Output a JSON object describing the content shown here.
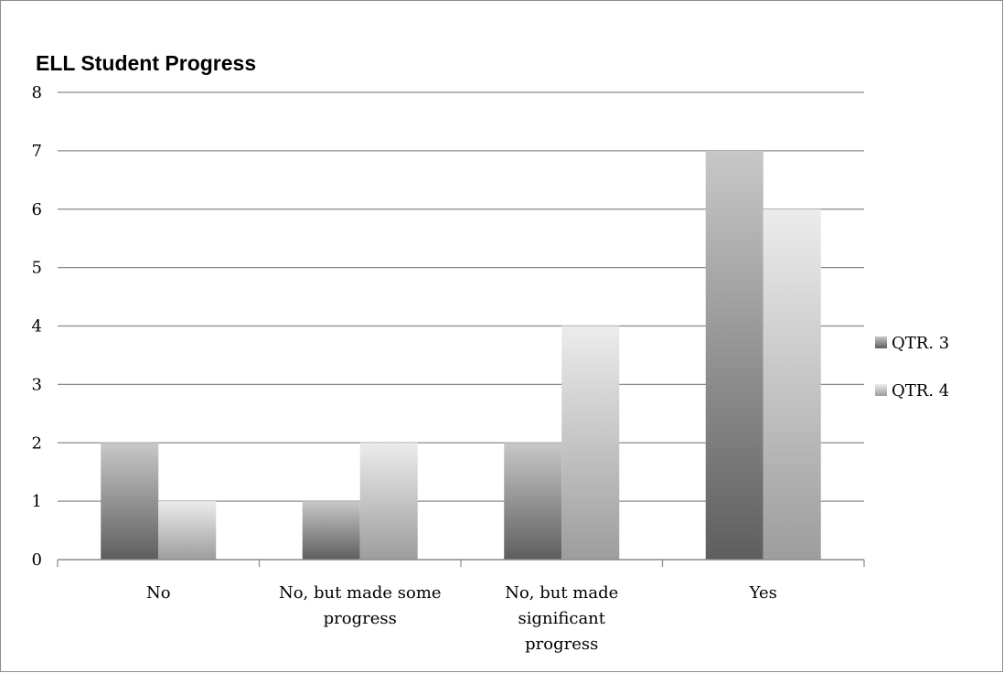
{
  "chart_data": {
    "type": "bar",
    "title": "ELL Student Progress",
    "categories": [
      [
        "No"
      ],
      [
        "No, but made some",
        "progress"
      ],
      [
        "No, but made",
        "significant",
        "progress"
      ],
      [
        "Yes"
      ]
    ],
    "series": [
      {
        "name": "QTR. 3",
        "values": [
          2,
          1,
          2,
          7
        ],
        "color_top": "#c8c8c8",
        "color_bottom": "#5e5e5e"
      },
      {
        "name": "QTR. 4",
        "values": [
          1,
          2,
          4,
          6
        ],
        "color_top": "#ececec",
        "color_bottom": "#9d9d9d"
      }
    ],
    "ylim": [
      0,
      8
    ],
    "yticks": [
      "0",
      "1",
      "2",
      "3",
      "4",
      "5",
      "6",
      "7",
      "8"
    ],
    "grid": true,
    "legend_position": "right",
    "xlabel": "",
    "ylabel": ""
  }
}
